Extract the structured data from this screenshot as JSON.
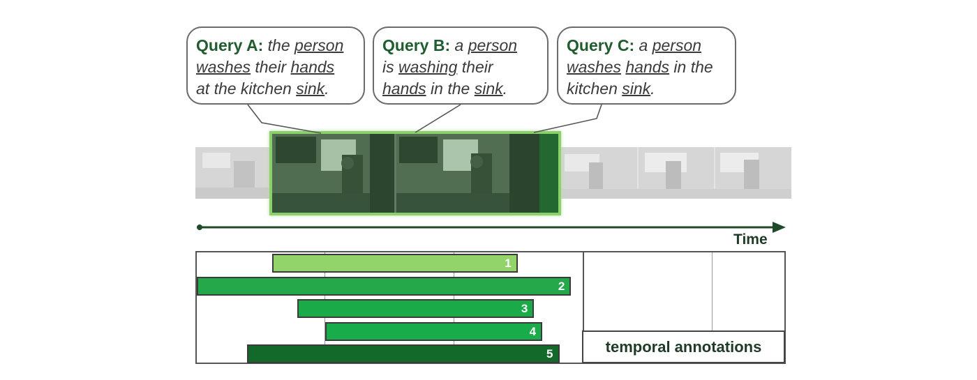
{
  "queries": [
    {
      "label": "Query A:",
      "lines": [
        [
          {
            "t": " the ",
            "u": false
          },
          {
            "t": "person",
            "u": true
          }
        ],
        [
          {
            "t": "washes",
            "u": true
          },
          {
            "t": " their ",
            "u": false
          },
          {
            "t": "hands",
            "u": true
          }
        ],
        [
          {
            "t": "at the kitchen ",
            "u": false
          },
          {
            "t": "sink",
            "u": true
          },
          {
            "t": ".",
            "u": false
          }
        ]
      ]
    },
    {
      "label": "Query B:",
      "lines": [
        [
          {
            "t": " a ",
            "u": false
          },
          {
            "t": "person",
            "u": true
          }
        ],
        [
          {
            "t": "is ",
            "u": false
          },
          {
            "t": "washing",
            "u": true
          },
          {
            "t": " their",
            "u": false
          }
        ],
        [
          {
            "t": "hands",
            "u": true
          },
          {
            "t": " in the ",
            "u": false
          },
          {
            "t": "sink",
            "u": true
          },
          {
            "t": ".",
            "u": false
          }
        ]
      ]
    },
    {
      "label": "Query C:",
      "lines": [
        [
          {
            "t": " a ",
            "u": false
          },
          {
            "t": "person",
            "u": true
          }
        ],
        [
          {
            "t": "washes",
            "u": true
          },
          {
            "t": " ",
            "u": false
          },
          {
            "t": "hands",
            "u": true
          },
          {
            "t": " in the",
            "u": false
          }
        ],
        [
          {
            "t": "kitchen ",
            "u": false
          },
          {
            "t": "sink",
            "u": true
          },
          {
            "t": ".",
            "u": false
          }
        ]
      ]
    }
  ],
  "timeline": {
    "label": "Time"
  },
  "annotations": {
    "legend": "temporal annotations",
    "bars": [
      {
        "label": "1",
        "start": 0.128,
        "end": 0.546,
        "color": "#92d36a"
      },
      {
        "label": "2",
        "start": 0.0,
        "end": 0.637,
        "color": "#23a84a"
      },
      {
        "label": "3",
        "start": 0.171,
        "end": 0.574,
        "color": "#1aab48"
      },
      {
        "label": "4",
        "start": 0.219,
        "end": 0.588,
        "color": "#18ad4a"
      },
      {
        "label": "5",
        "start": 0.085,
        "end": 0.617,
        "color": "#13692a"
      }
    ]
  },
  "colors": {
    "frame_border": "#8bd06a",
    "accent_dark": "#1f5c2e"
  }
}
